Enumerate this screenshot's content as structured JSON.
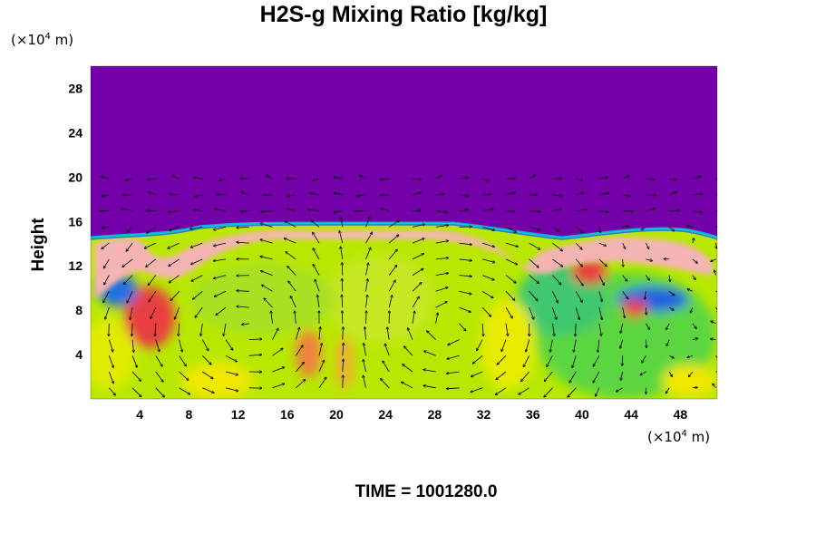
{
  "chart_data": {
    "type": "heatmap",
    "title": "H2S-g Mixing Ratio [kg/kg]",
    "ylabel": "Height",
    "xlabel": "",
    "x_unit_prefix": "(×10",
    "x_unit_exp": "4",
    "x_unit_suffix": " m)",
    "y_unit_prefix": "(×10",
    "y_unit_exp": "4",
    "y_unit_suffix": " m)",
    "xlim": [
      0,
      51
    ],
    "ylim": [
      0,
      30
    ],
    "x_ticks": [
      4,
      8,
      12,
      16,
      20,
      24,
      28,
      32,
      36,
      40,
      44,
      48
    ],
    "y_ticks": [
      4,
      8,
      12,
      16,
      20,
      24,
      28
    ],
    "colors": {
      "background_top": "#7300a8",
      "low": "#d4ee00",
      "mid": "#7ddc2e",
      "high": "#f06060",
      "peak": "#f4b8b8",
      "cold": "#2050e0"
    },
    "vector_field": true
  },
  "footer": {
    "time_label": "TIME = 1001280.0"
  }
}
